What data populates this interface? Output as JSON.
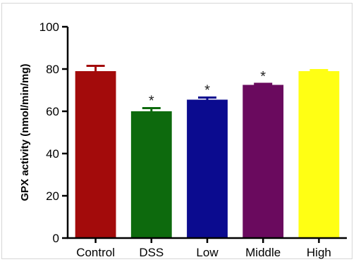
{
  "chart_data": {
    "type": "bar",
    "ylabel": "GPX activity (nmol/min/mg)",
    "ylim": [
      0,
      100
    ],
    "yticks": [
      "0",
      "20",
      "40",
      "60",
      "80",
      "100"
    ],
    "categories": [
      "Control",
      "DSS",
      "Low",
      "Middle",
      "High"
    ],
    "values": [
      79,
      60,
      65.5,
      72.5,
      79
    ],
    "errors": [
      2.5,
      1.5,
      1.0,
      0.5,
      0.5
    ],
    "significance": [
      "",
      "*",
      "*",
      "*",
      ""
    ],
    "colors": [
      "#a30b0b",
      "#0d6a0d",
      "#0b0b8f",
      "#6a0a5e",
      "#ffff14"
    ],
    "grid": false,
    "legend": "none"
  }
}
